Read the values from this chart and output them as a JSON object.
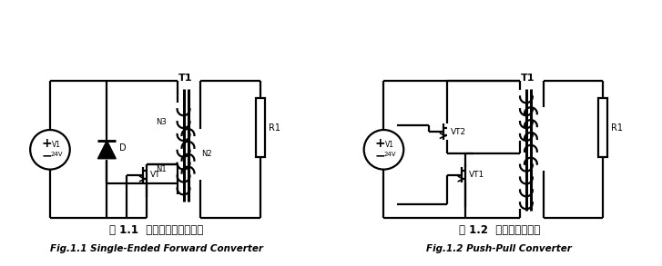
{
  "bg_color": "#ffffff",
  "title1_cn": "图 1.1  单端正激式变换电路",
  "title1_en": "Fig.1.1 Single-Ended Forward Converter",
  "title2_cn": "图 1.2  推挽式变换电路",
  "title2_en": "Fig.1.2 Push-Pull Converter",
  "lw": 1.6
}
